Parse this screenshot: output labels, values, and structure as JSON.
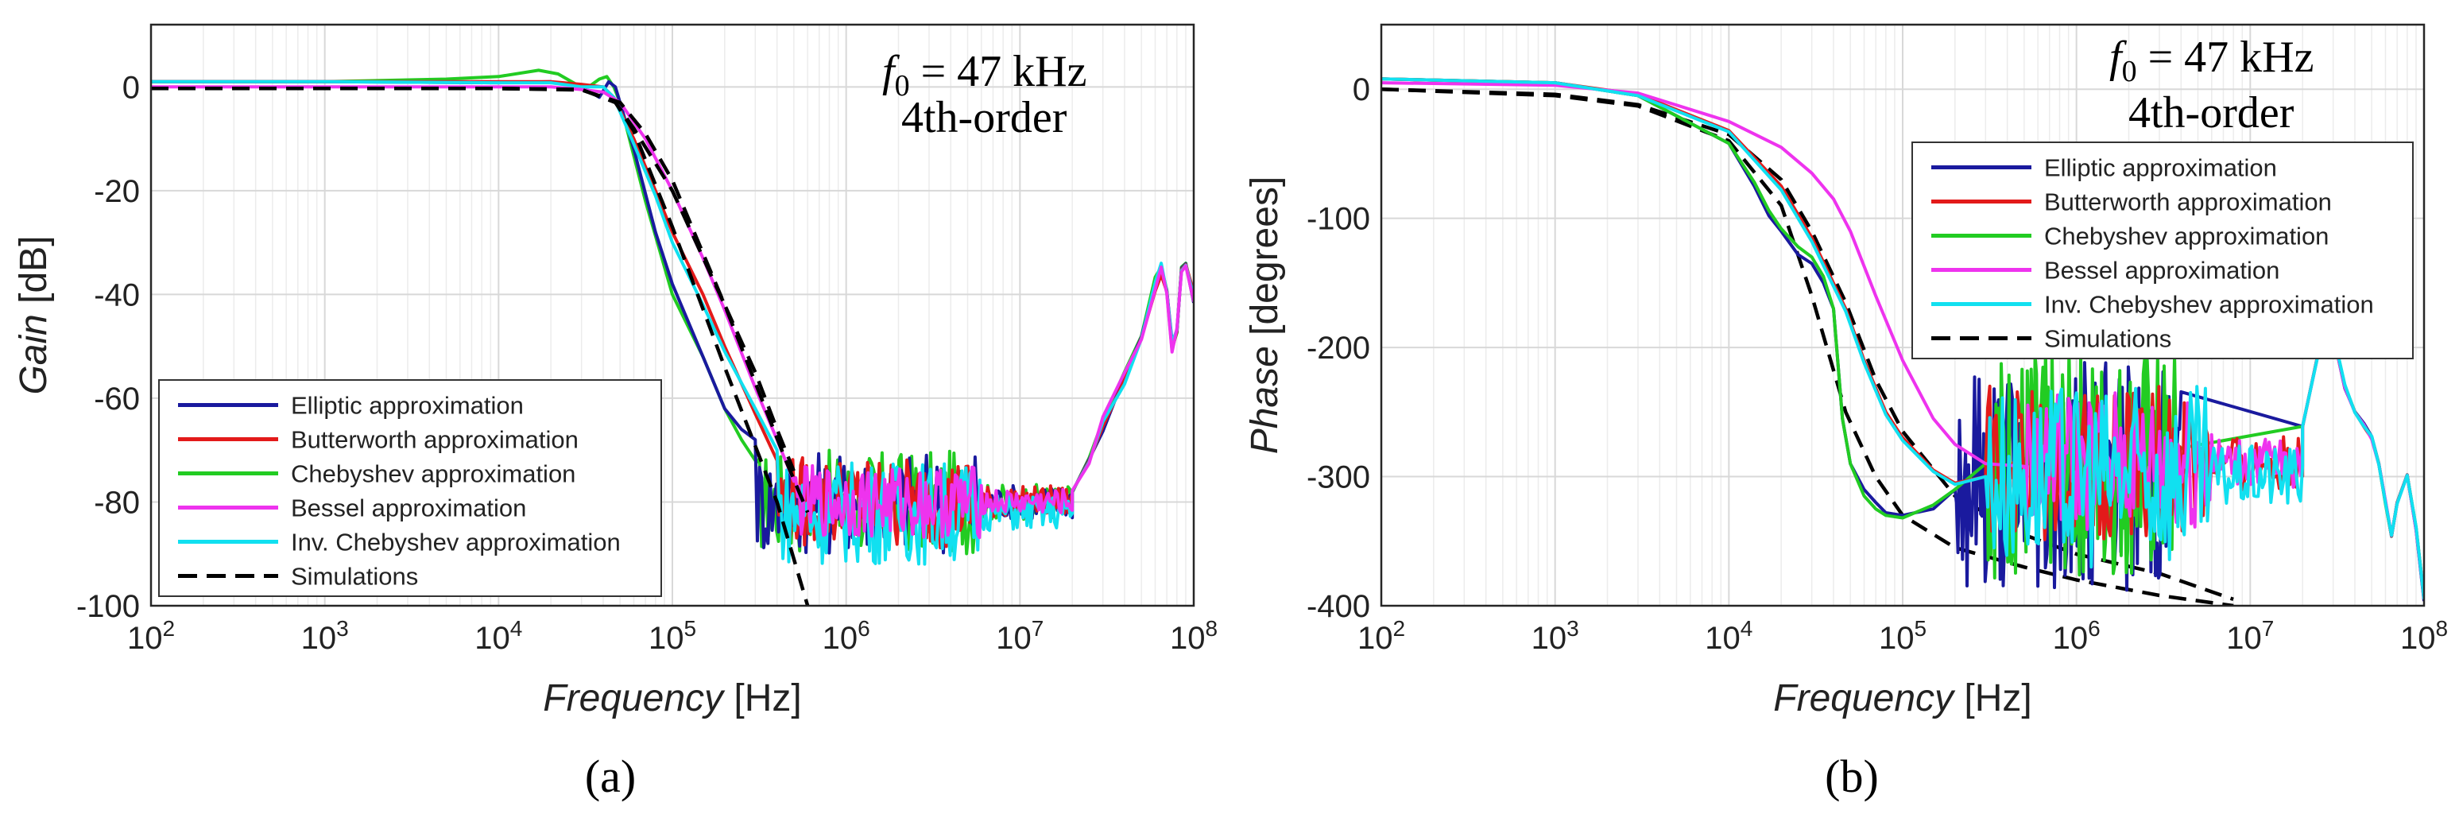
{
  "chart_data": [
    {
      "panel": "(a)",
      "type": "line",
      "title": "",
      "annotation": {
        "f_symbol": "f",
        "f_subscript": "0",
        "f_value": " = 47 kHz",
        "order": "4th-order"
      },
      "xlabel": {
        "italic": "Frequency",
        "normal": " [Hz]"
      },
      "ylabel": {
        "italic": "Gain",
        "normal": " [dB]"
      },
      "xscale": "log",
      "xlim": [
        100,
        100000000
      ],
      "ylim": [
        -100,
        12
      ],
      "xticks": [
        {
          "value": 100,
          "base": "10",
          "exp": "2"
        },
        {
          "value": 1000,
          "base": "10",
          "exp": "3"
        },
        {
          "value": 10000,
          "base": "10",
          "exp": "4"
        },
        {
          "value": 100000,
          "base": "10",
          "exp": "5"
        },
        {
          "value": 1000000,
          "base": "10",
          "exp": "6"
        },
        {
          "value": 10000000,
          "base": "10",
          "exp": "7"
        },
        {
          "value": 100000000,
          "base": "10",
          "exp": "8"
        }
      ],
      "yticks": [
        {
          "value": 0,
          "label": "0"
        },
        {
          "value": -20,
          "label": "-20"
        },
        {
          "value": -40,
          "label": "-40"
        },
        {
          "value": -60,
          "label": "-60"
        },
        {
          "value": -80,
          "label": "-80"
        },
        {
          "value": -100,
          "label": "-100"
        }
      ],
      "grid": true,
      "legend_position": "bottom-left",
      "legend": [
        {
          "name": "Elliptic approximation",
          "color": "#1a1a9e",
          "dash": false
        },
        {
          "name": "Butterworth approximation",
          "color": "#e31a1a",
          "dash": false
        },
        {
          "name": "Chebyshev approximation",
          "color": "#22cc22",
          "dash": false
        },
        {
          "name": "Bessel approximation",
          "color": "#ee33ee",
          "dash": false
        },
        {
          "name": "Inv. Chebyshev approximation",
          "color": "#11e0f0",
          "dash": false
        },
        {
          "name": "Simulations",
          "color": "#000000",
          "dash": true
        }
      ],
      "series": [
        {
          "name": "Chebyshev approximation",
          "color": "#22cc22",
          "width": 4,
          "x": [
            100,
            1000,
            5000,
            10000,
            17000,
            22000,
            28000,
            33000,
            38000,
            42000,
            46000,
            50000,
            70000,
            100000,
            150000,
            200000,
            250000,
            300000
          ],
          "y": [
            1,
            1,
            1.5,
            2,
            3.2,
            2.5,
            0.5,
            0,
            1.5,
            2,
            0,
            -3,
            -22,
            -40,
            -52,
            -62,
            -68,
            -72
          ],
          "noise": {
            "from": 300000,
            "to": 20000000,
            "center": -80,
            "amp": 10
          }
        },
        {
          "name": "Elliptic approximation",
          "color": "#1a1a9e",
          "width": 4,
          "x": [
            100,
            1000,
            10000,
            20000,
            30000,
            38000,
            43000,
            47000,
            60000,
            80000,
            100000,
            150000,
            200000,
            250000,
            300000
          ],
          "y": [
            1,
            1,
            0.8,
            1,
            0,
            -2,
            1,
            0,
            -12,
            -28,
            -38,
            -52,
            -62,
            -66,
            -68
          ],
          "noise": {
            "from": 300000,
            "to": 20000000,
            "center": -80,
            "amp": 10
          }
        },
        {
          "name": "Butterworth approximation",
          "color": "#e31a1a",
          "width": 4,
          "x": [
            100,
            1000,
            10000,
            20000,
            30000,
            40000,
            46000,
            60000,
            80000,
            100000,
            150000,
            200000,
            300000,
            400000
          ],
          "y": [
            1,
            1,
            1,
            1,
            0.5,
            0,
            -2,
            -10,
            -20,
            -28,
            -40,
            -50,
            -63,
            -72
          ],
          "noise": {
            "from": 400000,
            "to": 20000000,
            "center": -80,
            "amp": 9
          }
        },
        {
          "name": "Inv. Chebyshev approximation",
          "color": "#11e0f0",
          "width": 4,
          "x": [
            100,
            1000,
            10000,
            20000,
            30000,
            40000,
            46000,
            60000,
            80000,
            100000,
            150000,
            200000,
            300000,
            400000
          ],
          "y": [
            1,
            1,
            0.8,
            0.8,
            0,
            0,
            -2,
            -11,
            -21,
            -30,
            -42,
            -51,
            -62,
            -70
          ],
          "noise": {
            "from": 400000,
            "to": 20000000,
            "center": -82,
            "amp": 10
          }
        },
        {
          "name": "Bessel approximation",
          "color": "#ee33ee",
          "width": 4,
          "x": [
            100,
            1000,
            10000,
            20000,
            30000,
            40000,
            50000,
            70000,
            100000,
            150000,
            200000,
            300000,
            400000,
            500000
          ],
          "y": [
            0,
            0,
            0,
            0,
            -0.5,
            -1,
            -3,
            -10,
            -20,
            -33,
            -43,
            -58,
            -68,
            -76
          ],
          "noise": {
            "from": 500000,
            "to": 20000000,
            "center": -80,
            "amp": 7
          }
        },
        {
          "name": "Simulations",
          "color": "#000000",
          "width": 4.5,
          "dash": true,
          "x": [
            100,
            1000,
            10000,
            30000,
            47000,
            60000,
            100000,
            200000,
            400000,
            600000
          ],
          "y": [
            -0.3,
            -0.3,
            -0.3,
            -0.5,
            -3,
            -8.5,
            -27,
            -54,
            -80,
            -100
          ]
        },
        {
          "name": "Simulations",
          "color": "#000000",
          "width": 4.5,
          "dash": true,
          "x": [
            100,
            1000,
            10000,
            30000,
            47000,
            60000,
            100000,
            200000,
            300000,
            450000,
            600000
          ],
          "y": [
            -0.3,
            -0.3,
            -0.3,
            -0.5,
            -3,
            -8,
            -20,
            -42,
            -57,
            -72,
            -82
          ]
        },
        {
          "name": "Simulations",
          "color": "#000000",
          "width": 4.5,
          "dash": true,
          "x": [
            100,
            1000,
            10000,
            30000,
            50000,
            70000,
            100000,
            200000,
            300000,
            400000,
            500000
          ],
          "y": [
            -0.3,
            -0.3,
            -0.3,
            -0.6,
            -3,
            -9,
            -18,
            -42,
            -55,
            -66,
            -74
          ]
        }
      ],
      "tail": {
        "x": [
          20000000,
          25000000,
          30000000,
          40000000,
          50000000,
          60000000,
          65000000,
          70000000,
          75000000,
          80000000,
          85000000,
          90000000,
          100000000
        ],
        "y": [
          -78,
          -72,
          -65,
          -56,
          -48,
          -38,
          -35,
          -40,
          -50,
          -46,
          -36,
          -34,
          -41
        ]
      }
    },
    {
      "panel": "(b)",
      "type": "line",
      "title": "",
      "annotation": {
        "f_symbol": "f",
        "f_subscript": "0",
        "f_value": " = 47 kHz",
        "order": "4th-order"
      },
      "xlabel": {
        "italic": "Frequency",
        "normal": " [Hz]"
      },
      "ylabel": {
        "italic": "Phase",
        "normal": " [degrees]"
      },
      "xscale": "log",
      "xlim": [
        100,
        100000000
      ],
      "ylim": [
        -400,
        50
      ],
      "xticks": [
        {
          "value": 100,
          "base": "10",
          "exp": "2"
        },
        {
          "value": 1000,
          "base": "10",
          "exp": "3"
        },
        {
          "value": 10000,
          "base": "10",
          "exp": "4"
        },
        {
          "value": 100000,
          "base": "10",
          "exp": "5"
        },
        {
          "value": 1000000,
          "base": "10",
          "exp": "6"
        },
        {
          "value": 10000000,
          "base": "10",
          "exp": "7"
        },
        {
          "value": 100000000,
          "base": "10",
          "exp": "8"
        }
      ],
      "yticks": [
        {
          "value": 0,
          "label": "0"
        },
        {
          "value": -100,
          "label": "-100"
        },
        {
          "value": -200,
          "label": "-200"
        },
        {
          "value": -300,
          "label": "-300"
        },
        {
          "value": -400,
          "label": "-400"
        }
      ],
      "grid": true,
      "legend_position": "top-right",
      "legend": [
        {
          "name": "Elliptic approximation",
          "color": "#1a1a9e",
          "dash": false
        },
        {
          "name": "Butterworth approximation",
          "color": "#e31a1a",
          "dash": false
        },
        {
          "name": "Chebyshev approximation",
          "color": "#22cc22",
          "dash": false
        },
        {
          "name": "Bessel approximation",
          "color": "#ee33ee",
          "dash": false
        },
        {
          "name": "Inv. Chebyshev approximation",
          "color": "#11e0f0",
          "dash": false
        },
        {
          "name": "Simulations",
          "color": "#000000",
          "dash": true
        }
      ],
      "series": [
        {
          "name": "Simulations",
          "color": "#000000",
          "width": 4.5,
          "dash": true,
          "x": [
            100,
            1000,
            3000,
            10000,
            20000,
            30000,
            47000,
            70000,
            100000,
            200000,
            500000,
            1000000,
            3000000,
            8000000
          ],
          "y": [
            0,
            -5,
            -13,
            -40,
            -90,
            -160,
            -250,
            -300,
            -330,
            -355,
            -370,
            -380,
            -392,
            -400
          ]
        },
        {
          "name": "Simulations",
          "color": "#000000",
          "width": 4.5,
          "dash": true,
          "x": [
            100,
            1000,
            3000,
            10000,
            20000,
            30000,
            47000,
            70000,
            100000,
            200000,
            500000,
            1000000,
            3000000,
            8000000
          ],
          "y": [
            0,
            -4,
            -12,
            -35,
            -70,
            -110,
            -165,
            -225,
            -265,
            -315,
            -345,
            -360,
            -375,
            -395
          ]
        },
        {
          "name": "Elliptic approximation",
          "color": "#1a1a9e",
          "width": 4,
          "x": [
            100,
            1000,
            3000,
            10000,
            14000,
            17000,
            20000,
            25000,
            30000,
            35000,
            40000,
            45000,
            50000,
            60000,
            70000,
            80000,
            100000,
            150000,
            200000
          ],
          "y": [
            8,
            5,
            -5,
            -42,
            -75,
            -98,
            -110,
            -128,
            -135,
            -150,
            -170,
            -255,
            -290,
            -310,
            -320,
            -328,
            -330,
            -325,
            -310
          ],
          "noise": {
            "from": 200000,
            "to": 4000000,
            "center": -300,
            "amp": 90
          }
        },
        {
          "name": "Chebyshev approximation",
          "color": "#22cc22",
          "width": 4,
          "x": [
            100,
            1000,
            3000,
            10000,
            14000,
            17000,
            20000,
            25000,
            30000,
            35000,
            40000,
            45000,
            50000,
            60000,
            70000,
            80000,
            100000,
            150000,
            200000,
            300000
          ],
          "y": [
            8,
            5,
            -5,
            -42,
            -72,
            -94,
            -108,
            -122,
            -130,
            -145,
            -170,
            -255,
            -290,
            -315,
            -325,
            -330,
            -332,
            -322,
            -310,
            -290
          ],
          "noise": {
            "from": 300000,
            "to": 4000000,
            "center": -290,
            "amp": 90
          }
        },
        {
          "name": "Butterworth approximation",
          "color": "#e31a1a",
          "width": 4,
          "x": [
            100,
            1000,
            3000,
            10000,
            20000,
            30000,
            47000,
            60000,
            80000,
            100000,
            150000,
            200000,
            300000
          ],
          "y": [
            8,
            5,
            -4,
            -32,
            -75,
            -115,
            -170,
            -210,
            -250,
            -270,
            -295,
            -305,
            -300
          ],
          "noise": {
            "from": 300000,
            "to": 20000000,
            "center": -290,
            "amp": 60
          }
        },
        {
          "name": "Bessel approximation",
          "color": "#ee33ee",
          "width": 4,
          "x": [
            100,
            1000,
            3000,
            10000,
            20000,
            30000,
            40000,
            50000,
            70000,
            100000,
            150000,
            200000,
            300000,
            500000
          ],
          "y": [
            5,
            3,
            -3,
            -25,
            -45,
            -65,
            -85,
            -110,
            -160,
            -210,
            -255,
            -275,
            -290,
            -292
          ],
          "noise": {
            "from": 500000,
            "to": 20000000,
            "center": -290,
            "amp": 55
          }
        },
        {
          "name": "Inv. Chebyshev approximation",
          "color": "#11e0f0",
          "width": 4,
          "x": [
            100,
            1000,
            3000,
            10000,
            20000,
            30000,
            47000,
            60000,
            80000,
            100000,
            150000,
            200000,
            300000
          ],
          "y": [
            8,
            5,
            -5,
            -33,
            -78,
            -118,
            -172,
            -212,
            -252,
            -272,
            -296,
            -306,
            -300
          ],
          "noise": {
            "from": 300000,
            "to": 20000000,
            "center": -300,
            "amp": 70
          }
        }
      ],
      "tail": {
        "x": [
          20000000,
          25000000,
          30000000,
          35000000,
          40000000,
          45000000,
          50000000,
          55000000,
          60000000,
          65000000,
          70000000,
          80000000,
          90000000,
          100000000
        ],
        "y": [
          -260,
          -200,
          -190,
          -230,
          -250,
          -260,
          -270,
          -290,
          -320,
          -345,
          -320,
          -300,
          -340,
          -395
        ]
      }
    }
  ]
}
